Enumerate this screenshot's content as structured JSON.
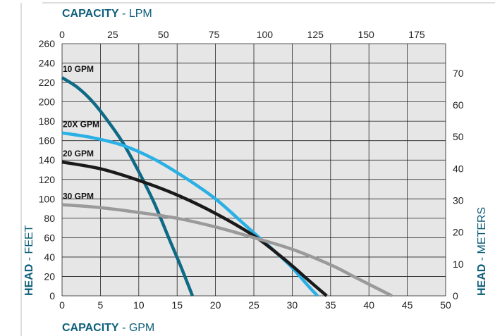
{
  "chart_data": {
    "type": "line",
    "x_axis_bottom": {
      "label_bold": "CAPACITY",
      "label_rest": " - GPM",
      "range": [
        0,
        50
      ],
      "ticks": [
        0,
        5,
        10,
        15,
        20,
        25,
        30,
        35,
        40,
        45,
        50
      ]
    },
    "x_axis_top": {
      "label_bold": "CAPACITY",
      "label_rest": " - LPM",
      "ticks": [
        0,
        25,
        50,
        75,
        100,
        125,
        150,
        175
      ]
    },
    "y_axis_left": {
      "label_bold": "HEAD",
      "label_rest": " - FEET",
      "range": [
        0,
        260
      ],
      "ticks": [
        0,
        20,
        40,
        60,
        80,
        100,
        120,
        140,
        160,
        180,
        200,
        220,
        240,
        260
      ]
    },
    "y_axis_right": {
      "label_bold": "HEAD",
      "label_rest": " - METERS",
      "ticks": [
        0,
        10,
        20,
        30,
        40,
        50,
        60,
        70
      ]
    },
    "grid": true,
    "series": [
      {
        "name": "10 GPM",
        "color": "#0e6a85",
        "points": [
          [
            0,
            225
          ],
          [
            2,
            215
          ],
          [
            4,
            200
          ],
          [
            6,
            180
          ],
          [
            8,
            157
          ],
          [
            10,
            128
          ],
          [
            12,
            96
          ],
          [
            14,
            58
          ],
          [
            15.5,
            30
          ],
          [
            17,
            0
          ]
        ]
      },
      {
        "name": "20X GPM",
        "color": "#2ab0e4",
        "points": [
          [
            0,
            168
          ],
          [
            4,
            163
          ],
          [
            8,
            155
          ],
          [
            12,
            141
          ],
          [
            16,
            122
          ],
          [
            20,
            100
          ],
          [
            24,
            72
          ],
          [
            26,
            58
          ],
          [
            28,
            44
          ],
          [
            30,
            29
          ],
          [
            32,
            11
          ],
          [
            33.3,
            0
          ]
        ]
      },
      {
        "name": "20 GPM",
        "color": "#1a1a1a",
        "points": [
          [
            0,
            138
          ],
          [
            5,
            131
          ],
          [
            10,
            119
          ],
          [
            15,
            104
          ],
          [
            20,
            85
          ],
          [
            25,
            62
          ],
          [
            28,
            44
          ],
          [
            30,
            31
          ],
          [
            32,
            17
          ],
          [
            34.5,
            0
          ]
        ]
      },
      {
        "name": "30 GPM",
        "color": "#9a9a9a",
        "points": [
          [
            0,
            94
          ],
          [
            5,
            91
          ],
          [
            10,
            86
          ],
          [
            15,
            80
          ],
          [
            20,
            71
          ],
          [
            25,
            60
          ],
          [
            30,
            48
          ],
          [
            35,
            32
          ],
          [
            38,
            20
          ],
          [
            40,
            12
          ],
          [
            43,
            0
          ]
        ]
      }
    ]
  },
  "colors": {
    "axis_title": "#0e5f7a",
    "grid": "#222222",
    "plot_bg": "#e6e6e6"
  }
}
